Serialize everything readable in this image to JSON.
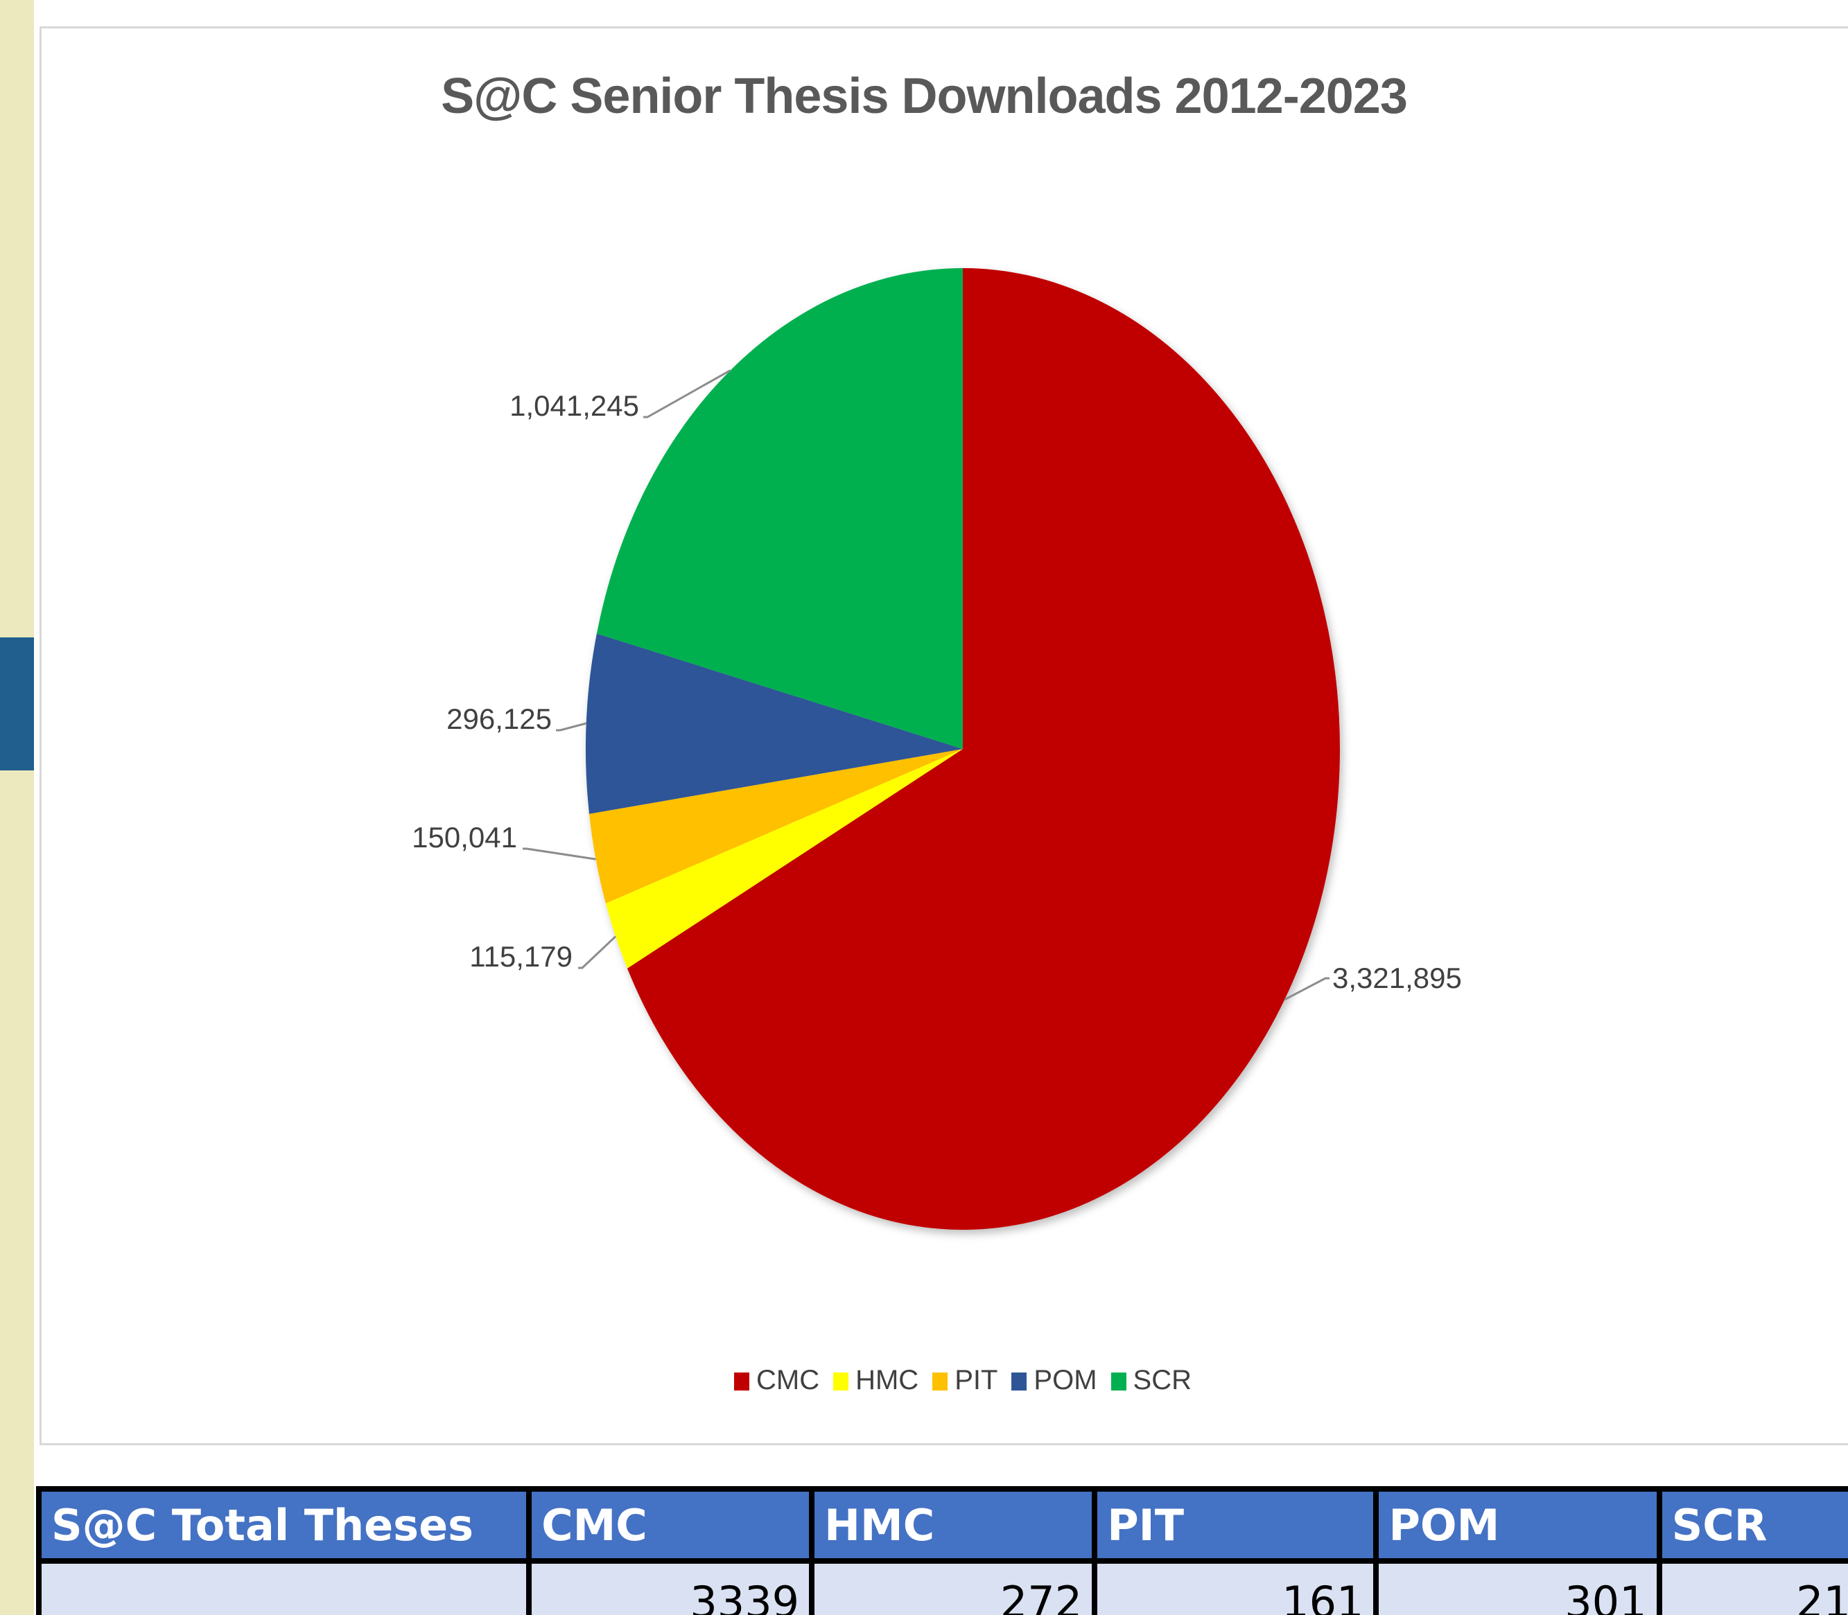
{
  "chart_data": {
    "type": "pie",
    "title": "S@C Senior Thesis Downloads 2012-2023",
    "categories": [
      "CMC",
      "HMC",
      "PIT",
      "POM",
      "SCR"
    ],
    "values": [
      3321895,
      115179,
      150041,
      296125,
      1041245
    ],
    "data_labels": [
      "3,321,895",
      "115,179",
      "150,041",
      "296,125",
      "1,041,245"
    ],
    "colors": [
      "#c00000",
      "#ffff00",
      "#ffc000",
      "#2f5597",
      "#00b050"
    ],
    "legend_position": "bottom"
  },
  "table": {
    "headers": [
      "S@C Total Theses",
      "CMC",
      "HMC",
      "PIT",
      "POM",
      "SCR"
    ],
    "rows": [
      [
        "",
        "3339",
        "272",
        "161",
        "301",
        "21"
      ]
    ]
  }
}
